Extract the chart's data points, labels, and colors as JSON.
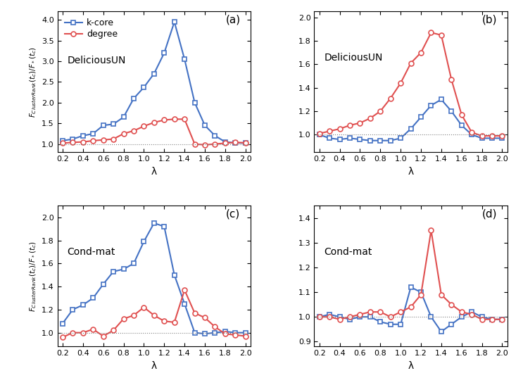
{
  "panel_a": {
    "label": "(a)",
    "network": "DeliciousUN",
    "ylim": [
      0.8,
      4.2
    ],
    "yticks": [
      1.0,
      1.5,
      2.0,
      2.5,
      3.0,
      3.5,
      4.0
    ],
    "kcore_x": [
      0.2,
      0.3,
      0.4,
      0.5,
      0.6,
      0.7,
      0.8,
      0.9,
      1.0,
      1.1,
      1.2,
      1.3,
      1.4,
      1.5,
      1.6,
      1.7,
      1.8,
      1.9,
      2.0
    ],
    "kcore_y": [
      1.08,
      1.12,
      1.2,
      1.25,
      1.45,
      1.48,
      1.65,
      2.1,
      2.37,
      2.7,
      3.2,
      3.95,
      3.05,
      2.0,
      1.45,
      1.2,
      1.05,
      1.03,
      1.02
    ],
    "degree_x": [
      0.2,
      0.3,
      0.4,
      0.5,
      0.6,
      0.7,
      0.8,
      0.9,
      1.0,
      1.1,
      1.2,
      1.3,
      1.4,
      1.5,
      1.6,
      1.7,
      1.8,
      1.9,
      2.0
    ],
    "degree_y": [
      1.02,
      1.04,
      1.05,
      1.08,
      1.1,
      1.12,
      1.25,
      1.32,
      1.43,
      1.52,
      1.58,
      1.6,
      1.6,
      1.0,
      0.98,
      1.0,
      1.02,
      1.04,
      1.03
    ]
  },
  "panel_b": {
    "label": "(b)",
    "network": "DeliciousUN",
    "ylim": [
      0.85,
      2.05
    ],
    "yticks": [
      1.0,
      1.2,
      1.4,
      1.6,
      1.8,
      2.0
    ],
    "kcore_x": [
      0.2,
      0.3,
      0.4,
      0.5,
      0.6,
      0.7,
      0.8,
      0.9,
      1.0,
      1.1,
      1.2,
      1.3,
      1.4,
      1.5,
      1.6,
      1.7,
      1.8,
      1.9,
      2.0
    ],
    "kcore_y": [
      1.0,
      0.97,
      0.96,
      0.97,
      0.96,
      0.95,
      0.95,
      0.95,
      0.97,
      1.05,
      1.15,
      1.25,
      1.3,
      1.2,
      1.08,
      1.0,
      0.97,
      0.97,
      0.97
    ],
    "degree_x": [
      0.2,
      0.3,
      0.4,
      0.5,
      0.6,
      0.7,
      0.8,
      0.9,
      1.0,
      1.1,
      1.2,
      1.3,
      1.4,
      1.5,
      1.6,
      1.7,
      1.8,
      1.9,
      2.0
    ],
    "degree_y": [
      1.01,
      1.03,
      1.05,
      1.08,
      1.1,
      1.14,
      1.2,
      1.31,
      1.44,
      1.61,
      1.7,
      1.87,
      1.85,
      1.47,
      1.17,
      1.02,
      0.99,
      0.99,
      0.99
    ]
  },
  "panel_c": {
    "label": "(c)",
    "network": "Cond-mat",
    "ylim": [
      0.88,
      2.1
    ],
    "yticks": [
      1.0,
      1.2,
      1.4,
      1.6,
      1.8,
      2.0
    ],
    "kcore_x": [
      0.2,
      0.3,
      0.4,
      0.5,
      0.6,
      0.7,
      0.8,
      0.9,
      1.0,
      1.1,
      1.2,
      1.3,
      1.4,
      1.5,
      1.6,
      1.7,
      1.8,
      1.9,
      2.0
    ],
    "kcore_y": [
      1.08,
      1.2,
      1.24,
      1.3,
      1.42,
      1.53,
      1.55,
      1.6,
      1.79,
      1.95,
      1.92,
      1.5,
      1.25,
      1.0,
      0.99,
      1.0,
      1.01,
      1.0,
      1.0
    ],
    "degree_x": [
      0.2,
      0.3,
      0.4,
      0.5,
      0.6,
      0.7,
      0.8,
      0.9,
      1.0,
      1.1,
      1.2,
      1.3,
      1.4,
      1.5,
      1.6,
      1.7,
      1.8,
      1.9,
      2.0
    ],
    "degree_y": [
      0.96,
      1.0,
      1.0,
      1.03,
      0.97,
      1.02,
      1.12,
      1.15,
      1.22,
      1.15,
      1.1,
      1.09,
      1.37,
      1.17,
      1.13,
      1.05,
      0.99,
      0.98,
      0.97
    ]
  },
  "panel_d": {
    "label": "(d)",
    "network": "Cond-mat",
    "ylim": [
      0.88,
      1.45
    ],
    "yticks": [
      0.9,
      1.0,
      1.1,
      1.2,
      1.3,
      1.4
    ],
    "kcore_x": [
      0.2,
      0.3,
      0.4,
      0.5,
      0.6,
      0.7,
      0.8,
      0.9,
      1.0,
      1.1,
      1.2,
      1.3,
      1.4,
      1.5,
      1.6,
      1.7,
      1.8,
      1.9,
      2.0
    ],
    "kcore_y": [
      1.0,
      1.01,
      1.0,
      0.99,
      1.0,
      1.0,
      0.98,
      0.97,
      0.97,
      1.12,
      1.1,
      1.0,
      0.94,
      0.97,
      1.0,
      1.02,
      1.0,
      0.99,
      0.99
    ],
    "degree_x": [
      0.2,
      0.3,
      0.4,
      0.5,
      0.6,
      0.7,
      0.8,
      0.9,
      1.0,
      1.1,
      1.2,
      1.3,
      1.4,
      1.5,
      1.6,
      1.7,
      1.8,
      1.9,
      2.0
    ],
    "degree_y": [
      1.0,
      1.0,
      0.99,
      1.0,
      1.01,
      1.02,
      1.02,
      1.0,
      1.02,
      1.04,
      1.09,
      1.35,
      1.09,
      1.05,
      1.02,
      1.01,
      0.99,
      0.99,
      0.99
    ]
  },
  "blue_color": "#4472C4",
  "red_color": "#E05050",
  "marker_size": 5,
  "linewidth": 1.5,
  "xlabel": "λ",
  "xlim": [
    0.15,
    2.05
  ],
  "xticks": [
    0.2,
    0.4,
    0.6,
    0.8,
    1.0,
    1.2,
    1.4,
    1.6,
    1.8,
    2.0
  ]
}
